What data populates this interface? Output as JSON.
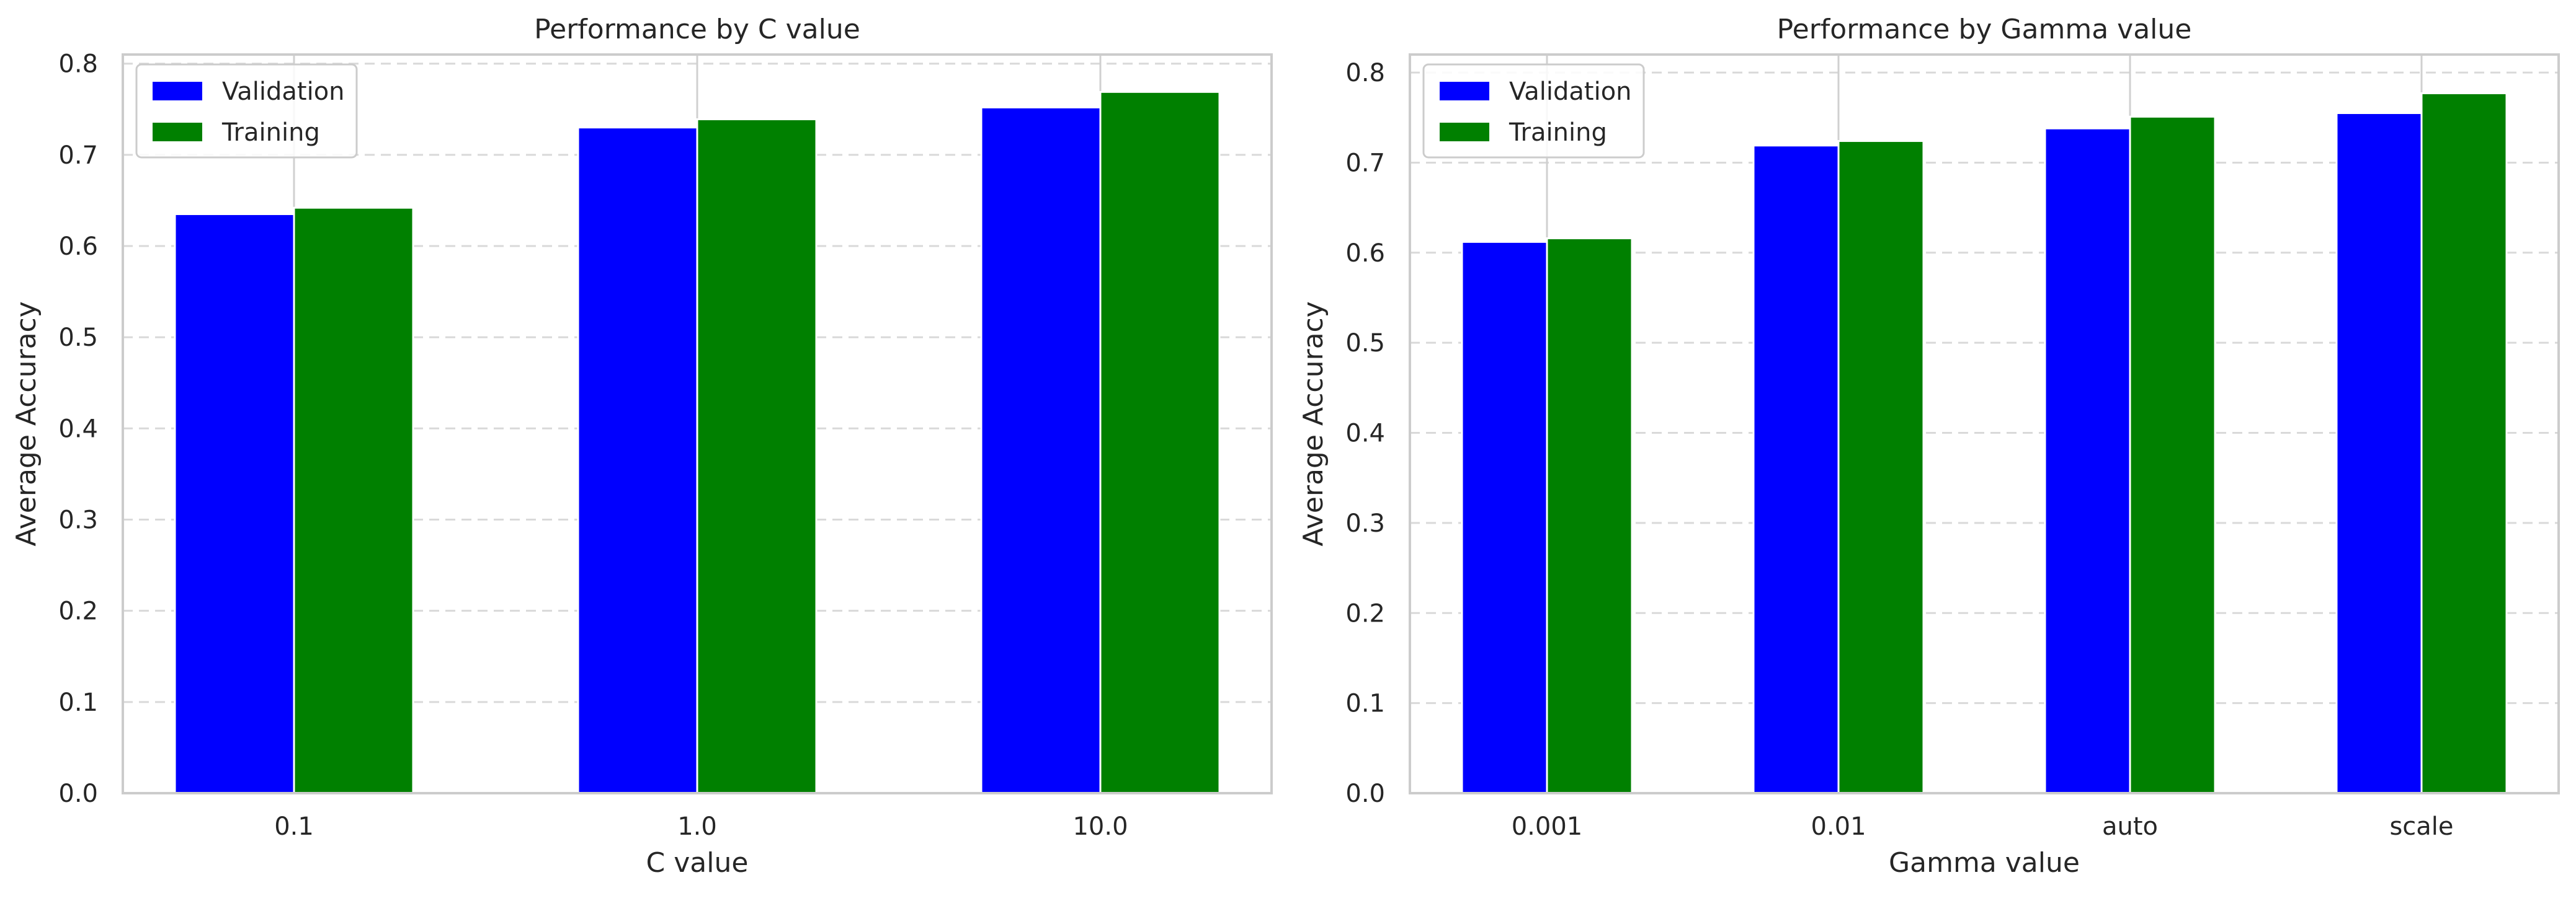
{
  "chart_data": [
    {
      "type": "bar",
      "title": "Performance by C value",
      "xlabel": "C value",
      "ylabel": "Average Accuracy",
      "categories": [
        "0.1",
        "1.0",
        "10.0"
      ],
      "ylim": [
        0,
        0.81
      ],
      "yticks": [
        "0.0",
        "0.1",
        "0.2",
        "0.3",
        "0.4",
        "0.5",
        "0.6",
        "0.7",
        "0.8"
      ],
      "grid": "y dashed",
      "legend_position": "top-left",
      "series": [
        {
          "name": "Validation",
          "color": "#0000ff",
          "values": [
            0.635,
            0.73,
            0.752
          ]
        },
        {
          "name": "Training",
          "color": "#008000",
          "values": [
            0.642,
            0.739,
            0.769
          ]
        }
      ]
    },
    {
      "type": "bar",
      "title": "Performance by Gamma value",
      "xlabel": "Gamma value",
      "ylabel": "Average Accuracy",
      "categories": [
        "0.001",
        "0.01",
        "auto",
        "scale"
      ],
      "ylim": [
        0,
        0.82
      ],
      "yticks": [
        "0.0",
        "0.1",
        "0.2",
        "0.3",
        "0.4",
        "0.5",
        "0.6",
        "0.7",
        "0.8"
      ],
      "grid": "y dashed",
      "legend_position": "top-left",
      "series": [
        {
          "name": "Validation",
          "color": "#0000ff",
          "values": [
            0.612,
            0.719,
            0.738,
            0.755
          ]
        },
        {
          "name": "Training",
          "color": "#008000",
          "values": [
            0.616,
            0.724,
            0.751,
            0.777
          ]
        }
      ]
    }
  ]
}
